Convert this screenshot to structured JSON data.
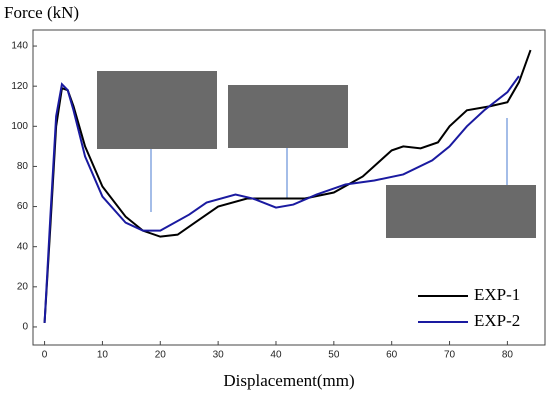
{
  "chart_data": {
    "type": "line",
    "y_label": "Force (kN)",
    "x_label": "Displacement(mm)",
    "xlim": [
      -2,
      86.5
    ],
    "ylim": [
      -9,
      148
    ],
    "xticks": [
      0,
      10,
      20,
      30,
      40,
      50,
      60,
      70,
      80
    ],
    "yticks": [
      0,
      20,
      40,
      60,
      80,
      100,
      120,
      140
    ],
    "legend": "lower right",
    "series": [
      {
        "name": "EXP-1",
        "color": "#000000",
        "x": [
          0,
          1,
          2,
          3,
          4,
          5,
          7,
          10,
          14,
          17,
          20,
          23,
          26,
          30,
          35,
          40,
          45,
          50,
          55,
          60,
          62,
          65,
          68,
          70,
          73,
          77,
          80,
          82,
          84
        ],
        "values": [
          2,
          50,
          100,
          119,
          118,
          110,
          90,
          70,
          55,
          48,
          45,
          46,
          52,
          60,
          64,
          64,
          64,
          67,
          75,
          88,
          90,
          89,
          92,
          100,
          108,
          110,
          112,
          122,
          138
        ]
      },
      {
        "name": "EXP-2",
        "color": "#1a1aa0",
        "x": [
          0,
          1,
          2,
          3,
          4,
          5,
          7,
          10,
          14,
          17,
          20,
          25,
          28,
          33,
          36,
          40,
          43,
          47,
          52,
          57,
          62,
          67,
          70,
          73,
          76,
          80,
          82
        ],
        "values": [
          2,
          55,
          105,
          121,
          118,
          108,
          85,
          65,
          52,
          48,
          48,
          56,
          62,
          66,
          64,
          59.5,
          61,
          66,
          71,
          73,
          76,
          83,
          90,
          100,
          108,
          117,
          125
        ]
      }
    ]
  }
}
